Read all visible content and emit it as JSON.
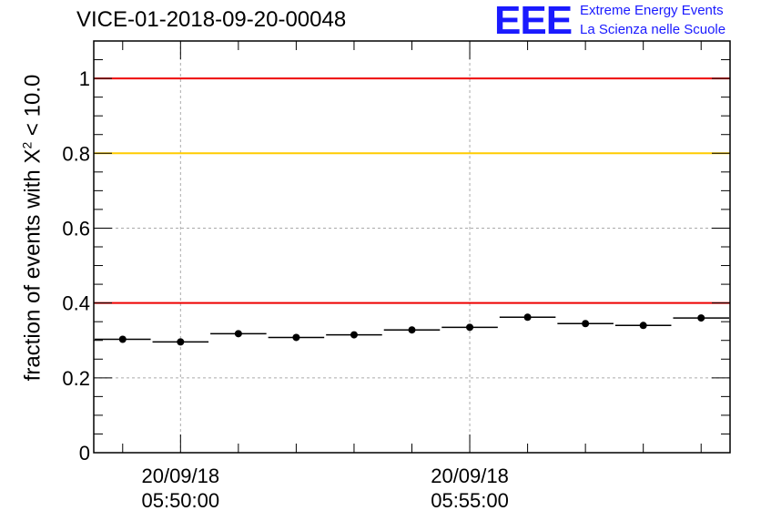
{
  "header": {
    "run_title": "VICE-01-2018-09-20-00048",
    "logo_mark": "EEE",
    "logo_line1": "Extreme Energy Events",
    "logo_line2": "La Scienza nelle Scuole"
  },
  "colors": {
    "logo": "#1a1aff",
    "upper_threshold": "#ee0000",
    "middle_threshold": "#ffcc00",
    "lower_threshold": "#ee0000",
    "markers": "#000000",
    "grid": "#aaaaaa"
  },
  "chart_data": {
    "type": "scatter",
    "title": "VICE-01-2018-09-20-00048",
    "ylabel": {
      "prefix": "fraction of events with ",
      "symbol": "X",
      "sup": "2",
      "suffix": " < 10.0"
    },
    "xlabel": "",
    "x_axis": {
      "type": "time",
      "range": [
        "05:48:30",
        "05:59:30"
      ]
    },
    "ylim": [
      0,
      1.1
    ],
    "grid": true,
    "y_ticks": [
      {
        "value": 0,
        "label": "0"
      },
      {
        "value": 0.2,
        "label": "0.2"
      },
      {
        "value": 0.4,
        "label": "0.4"
      },
      {
        "value": 0.6,
        "label": "0.6"
      },
      {
        "value": 0.8,
        "label": "0.8"
      },
      {
        "value": 1,
        "label": "1"
      }
    ],
    "x_ticks": [
      {
        "value": "05:50:00",
        "date": "20/09/18",
        "time": "05:50:00"
      },
      {
        "value": "05:55:00",
        "date": "20/09/18",
        "time": "05:55:00"
      }
    ],
    "reference_lines": [
      {
        "y": 1.0,
        "color": "#ee0000"
      },
      {
        "y": 0.8,
        "color": "#ffcc00"
      },
      {
        "y": 0.4,
        "color": "#ee0000"
      }
    ],
    "points": [
      {
        "x": "05:49:00",
        "x_start": "05:48:30",
        "x_end": "05:49:30",
        "y": 0.303
      },
      {
        "x": "05:50:00",
        "x_start": "05:49:30",
        "x_end": "05:50:30",
        "y": 0.296
      },
      {
        "x": "05:51:00",
        "x_start": "05:50:30",
        "x_end": "05:51:30",
        "y": 0.318
      },
      {
        "x": "05:52:00",
        "x_start": "05:51:30",
        "x_end": "05:52:30",
        "y": 0.308
      },
      {
        "x": "05:53:00",
        "x_start": "05:52:30",
        "x_end": "05:53:30",
        "y": 0.315
      },
      {
        "x": "05:54:00",
        "x_start": "05:53:30",
        "x_end": "05:54:30",
        "y": 0.328
      },
      {
        "x": "05:55:00",
        "x_start": "05:54:30",
        "x_end": "05:55:30",
        "y": 0.335
      },
      {
        "x": "05:56:00",
        "x_start": "05:55:30",
        "x_end": "05:56:30",
        "y": 0.362
      },
      {
        "x": "05:57:00",
        "x_start": "05:56:30",
        "x_end": "05:57:30",
        "y": 0.345
      },
      {
        "x": "05:58:00",
        "x_start": "05:57:30",
        "x_end": "05:58:30",
        "y": 0.34
      },
      {
        "x": "05:59:00",
        "x_start": "05:58:30",
        "x_end": "05:59:30",
        "y": 0.36
      }
    ]
  }
}
